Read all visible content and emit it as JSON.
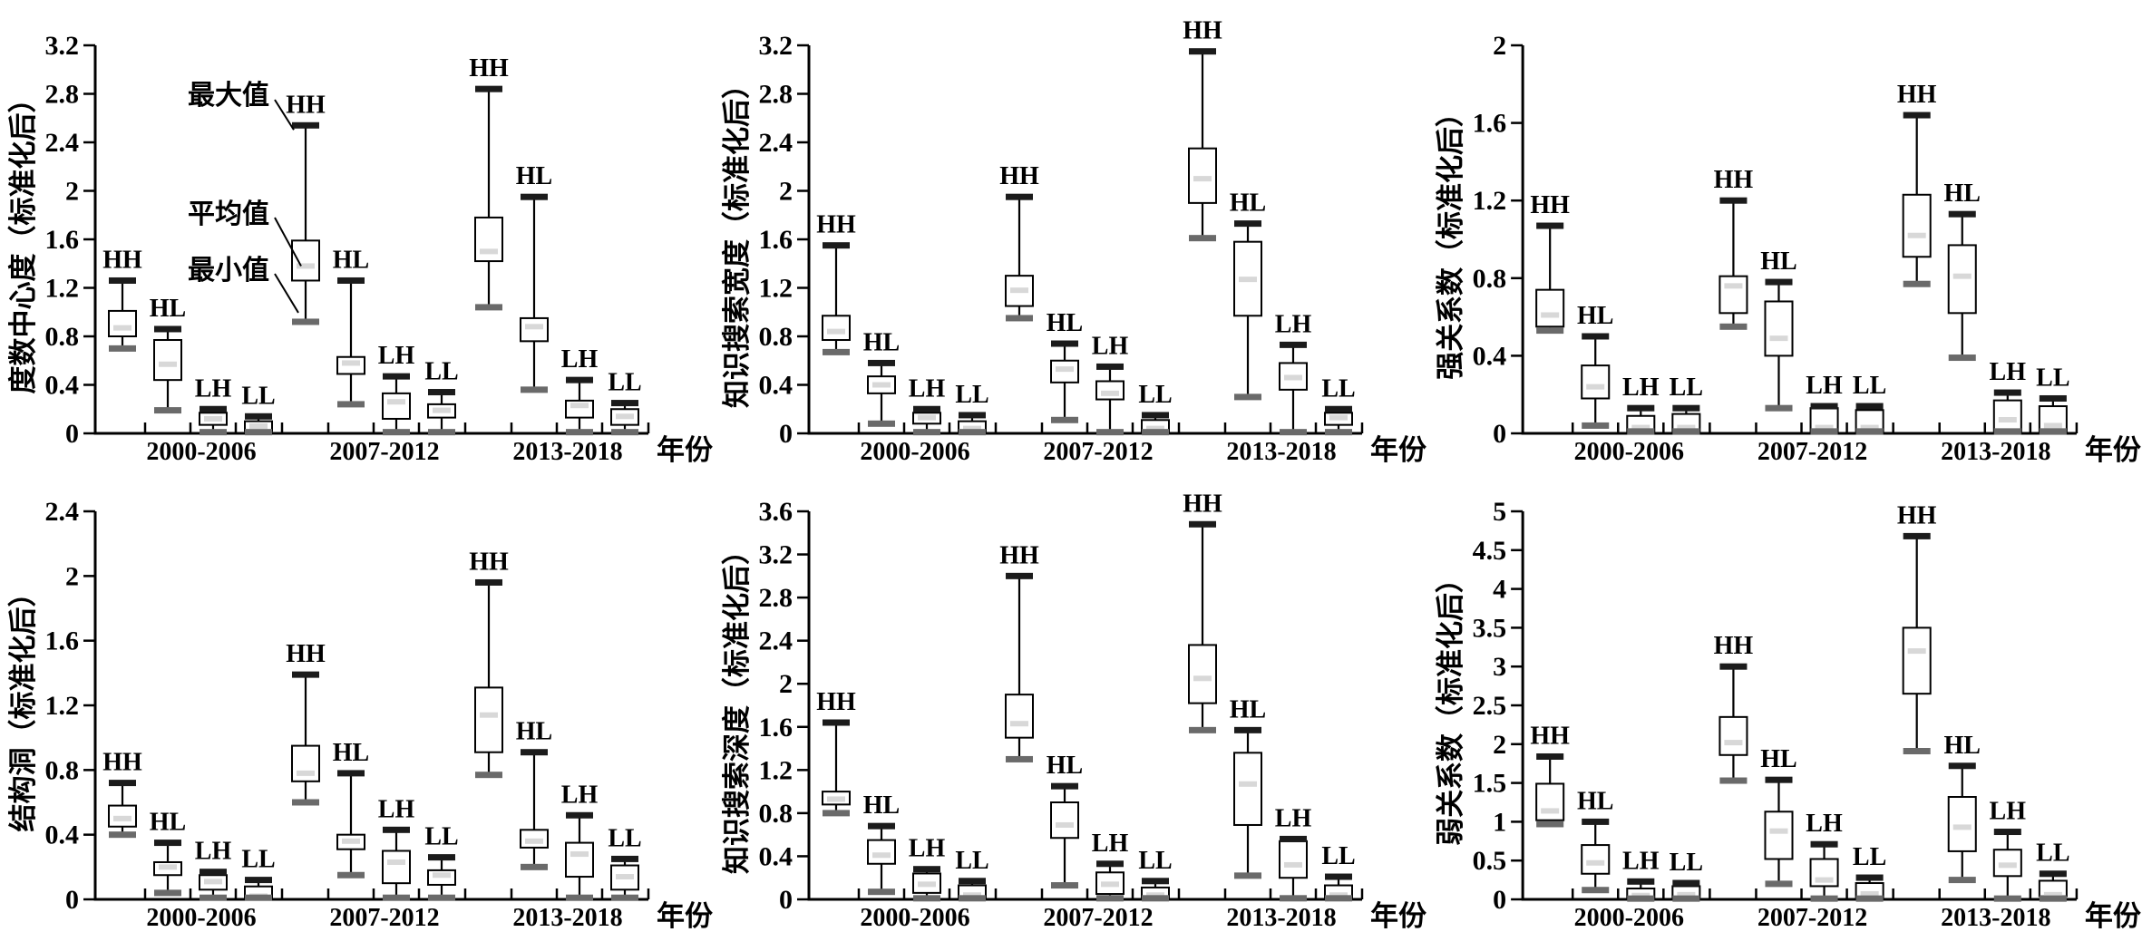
{
  "figure": {
    "xlabel": "年份",
    "period_labels": [
      "2000-2006",
      "2007-2012",
      "2013-2018"
    ],
    "group_labels": [
      "HH",
      "HL",
      "LH",
      "LL"
    ],
    "annotation_labels": {
      "max": "最大值",
      "mean": "平均值",
      "min": "最小值"
    },
    "colors": {
      "max_cap": "#1b1b1b",
      "min_cap": "#6a6a6a",
      "mean_bar": "#d8d8d8",
      "box_fill": "#ffffff",
      "line": "#000000"
    }
  },
  "chart_data": [
    {
      "type": "box",
      "ylabel": "度数中心度（标准化后）",
      "xlabel": "年份",
      "ylim": [
        0,
        3.2
      ],
      "ytick_step": 0.4,
      "grid": false,
      "annotations": {
        "max_label": "最大值",
        "mean_label": "平均值",
        "min_label": "最小值",
        "target_period": 1,
        "target_box": 0
      },
      "periods": [
        {
          "label": "2000-2006",
          "boxes": [
            {
              "group": "HH",
              "min": 0.7,
              "q1": 0.8,
              "mean": 0.87,
              "q3": 1.01,
              "max": 1.26
            },
            {
              "group": "HL",
              "min": 0.19,
              "q1": 0.44,
              "mean": 0.57,
              "q3": 0.77,
              "max": 0.86
            },
            {
              "group": "LH",
              "min": 0.01,
              "q1": 0.07,
              "mean": 0.12,
              "q3": 0.17,
              "max": 0.2
            },
            {
              "group": "LL",
              "min": 0.01,
              "q1": 0.02,
              "mean": 0.06,
              "q3": 0.1,
              "max": 0.14
            }
          ]
        },
        {
          "label": "2007-2012",
          "boxes": [
            {
              "group": "HH",
              "min": 0.92,
              "q1": 1.26,
              "mean": 1.38,
              "q3": 1.59,
              "max": 2.54
            },
            {
              "group": "HL",
              "min": 0.24,
              "q1": 0.49,
              "mean": 0.58,
              "q3": 0.63,
              "max": 1.26
            },
            {
              "group": "LH",
              "min": 0.01,
              "q1": 0.12,
              "mean": 0.26,
              "q3": 0.33,
              "max": 0.47
            },
            {
              "group": "LL",
              "min": 0.01,
              "q1": 0.13,
              "mean": 0.19,
              "q3": 0.24,
              "max": 0.34
            }
          ]
        },
        {
          "label": "2013-2018",
          "boxes": [
            {
              "group": "HH",
              "min": 1.04,
              "q1": 1.42,
              "mean": 1.5,
              "q3": 1.78,
              "max": 2.84
            },
            {
              "group": "HL",
              "min": 0.36,
              "q1": 0.76,
              "mean": 0.88,
              "q3": 0.95,
              "max": 1.95
            },
            {
              "group": "LH",
              "min": 0.01,
              "q1": 0.13,
              "mean": 0.23,
              "q3": 0.27,
              "max": 0.44
            },
            {
              "group": "LL",
              "min": 0.01,
              "q1": 0.07,
              "mean": 0.14,
              "q3": 0.2,
              "max": 0.25
            }
          ]
        }
      ]
    },
    {
      "type": "box",
      "ylabel": "知识搜索宽度（标准化后）",
      "xlabel": "年份",
      "ylim": [
        0,
        3.2
      ],
      "ytick_step": 0.4,
      "grid": false,
      "periods": [
        {
          "label": "2000-2006",
          "boxes": [
            {
              "group": "HH",
              "min": 0.67,
              "q1": 0.77,
              "mean": 0.84,
              "q3": 0.97,
              "max": 1.55
            },
            {
              "group": "HL",
              "min": 0.08,
              "q1": 0.33,
              "mean": 0.4,
              "q3": 0.47,
              "max": 0.58
            },
            {
              "group": "LH",
              "min": 0.01,
              "q1": 0.08,
              "mean": 0.13,
              "q3": 0.17,
              "max": 0.2
            },
            {
              "group": "LL",
              "min": 0.01,
              "q1": 0.01,
              "mean": 0.04,
              "q3": 0.1,
              "max": 0.15
            }
          ]
        },
        {
          "label": "2007-2012",
          "boxes": [
            {
              "group": "HH",
              "min": 0.95,
              "q1": 1.05,
              "mean": 1.18,
              "q3": 1.3,
              "max": 1.95
            },
            {
              "group": "HL",
              "min": 0.11,
              "q1": 0.42,
              "mean": 0.53,
              "q3": 0.6,
              "max": 0.74
            },
            {
              "group": "LH",
              "min": 0.01,
              "q1": 0.28,
              "mean": 0.33,
              "q3": 0.43,
              "max": 0.55
            },
            {
              "group": "LL",
              "min": 0.01,
              "q1": 0.01,
              "mean": 0.04,
              "q3": 0.11,
              "max": 0.15
            }
          ]
        },
        {
          "label": "2013-2018",
          "boxes": [
            {
              "group": "HH",
              "min": 1.61,
              "q1": 1.9,
              "mean": 2.1,
              "q3": 2.35,
              "max": 3.15
            },
            {
              "group": "HL",
              "min": 0.3,
              "q1": 0.97,
              "mean": 1.27,
              "q3": 1.58,
              "max": 1.73
            },
            {
              "group": "LH",
              "min": 0.01,
              "q1": 0.36,
              "mean": 0.46,
              "q3": 0.58,
              "max": 0.73
            },
            {
              "group": "LL",
              "min": 0.01,
              "q1": 0.07,
              "mean": 0.13,
              "q3": 0.17,
              "max": 0.2
            }
          ]
        }
      ]
    },
    {
      "type": "box",
      "ylabel": "强关系数（标准化后）",
      "xlabel": "年份",
      "ylim": [
        0,
        2.0
      ],
      "ytick_step": 0.4,
      "grid": false,
      "periods": [
        {
          "label": "2000-2006",
          "boxes": [
            {
              "group": "HH",
              "min": 0.53,
              "q1": 0.55,
              "mean": 0.61,
              "q3": 0.74,
              "max": 1.07
            },
            {
              "group": "HL",
              "min": 0.04,
              "q1": 0.18,
              "mean": 0.24,
              "q3": 0.35,
              "max": 0.5
            },
            {
              "group": "LH",
              "min": 0.01,
              "q1": 0.01,
              "mean": 0.03,
              "q3": 0.09,
              "max": 0.13
            },
            {
              "group": "LL",
              "min": 0.01,
              "q1": 0.01,
              "mean": 0.03,
              "q3": 0.1,
              "max": 0.13
            }
          ]
        },
        {
          "label": "2007-2012",
          "boxes": [
            {
              "group": "HH",
              "min": 0.55,
              "q1": 0.62,
              "mean": 0.76,
              "q3": 0.81,
              "max": 1.2
            },
            {
              "group": "HL",
              "min": 0.13,
              "q1": 0.4,
              "mean": 0.49,
              "q3": 0.68,
              "max": 0.78
            },
            {
              "group": "LH",
              "min": 0.01,
              "q1": 0.01,
              "mean": 0.03,
              "q3": 0.13,
              "max": 0.14
            },
            {
              "group": "LL",
              "min": 0.01,
              "q1": 0.01,
              "mean": 0.03,
              "q3": 0.12,
              "max": 0.14
            }
          ]
        },
        {
          "label": "2013-2018",
          "boxes": [
            {
              "group": "HH",
              "min": 0.77,
              "q1": 0.91,
              "mean": 1.02,
              "q3": 1.23,
              "max": 1.64
            },
            {
              "group": "HL",
              "min": 0.39,
              "q1": 0.62,
              "mean": 0.81,
              "q3": 0.97,
              "max": 1.13
            },
            {
              "group": "LH",
              "min": 0.01,
              "q1": 0.01,
              "mean": 0.07,
              "q3": 0.17,
              "max": 0.21
            },
            {
              "group": "LL",
              "min": 0.01,
              "q1": 0.01,
              "mean": 0.04,
              "q3": 0.14,
              "max": 0.18
            }
          ]
        }
      ]
    },
    {
      "type": "box",
      "ylabel": "结构洞（标准化后）",
      "xlabel": "年份",
      "ylim": [
        0,
        2.4
      ],
      "ytick_step": 0.4,
      "grid": false,
      "periods": [
        {
          "label": "2000-2006",
          "boxes": [
            {
              "group": "HH",
              "min": 0.4,
              "q1": 0.45,
              "mean": 0.5,
              "q3": 0.58,
              "max": 0.72
            },
            {
              "group": "HL",
              "min": 0.04,
              "q1": 0.15,
              "mean": 0.2,
              "q3": 0.23,
              "max": 0.35
            },
            {
              "group": "LH",
              "min": 0.01,
              "q1": 0.06,
              "mean": 0.11,
              "q3": 0.15,
              "max": 0.17
            },
            {
              "group": "LL",
              "min": 0.01,
              "q1": 0.01,
              "mean": 0.02,
              "q3": 0.08,
              "max": 0.12
            }
          ]
        },
        {
          "label": "2007-2012",
          "boxes": [
            {
              "group": "HH",
              "min": 0.6,
              "q1": 0.73,
              "mean": 0.78,
              "q3": 0.95,
              "max": 1.39
            },
            {
              "group": "HL",
              "min": 0.15,
              "q1": 0.31,
              "mean": 0.36,
              "q3": 0.4,
              "max": 0.78
            },
            {
              "group": "LH",
              "min": 0.01,
              "q1": 0.1,
              "mean": 0.23,
              "q3": 0.3,
              "max": 0.43
            },
            {
              "group": "LL",
              "min": 0.01,
              "q1": 0.09,
              "mean": 0.15,
              "q3": 0.18,
              "max": 0.26
            }
          ]
        },
        {
          "label": "2013-2018",
          "boxes": [
            {
              "group": "HH",
              "min": 0.77,
              "q1": 0.91,
              "mean": 1.14,
              "q3": 1.31,
              "max": 1.96
            },
            {
              "group": "HL",
              "min": 0.2,
              "q1": 0.32,
              "mean": 0.36,
              "q3": 0.43,
              "max": 0.91
            },
            {
              "group": "LH",
              "min": 0.01,
              "q1": 0.14,
              "mean": 0.28,
              "q3": 0.35,
              "max": 0.52
            },
            {
              "group": "LL",
              "min": 0.01,
              "q1": 0.06,
              "mean": 0.14,
              "q3": 0.21,
              "max": 0.25
            }
          ]
        }
      ]
    },
    {
      "type": "box",
      "ylabel": "知识搜索深度（标准化后）",
      "xlabel": "年份",
      "ylim": [
        0,
        3.6
      ],
      "ytick_step": 0.4,
      "grid": false,
      "periods": [
        {
          "label": "2000-2006",
          "boxes": [
            {
              "group": "HH",
              "min": 0.8,
              "q1": 0.88,
              "mean": 0.93,
              "q3": 1.0,
              "max": 1.64
            },
            {
              "group": "HL",
              "min": 0.07,
              "q1": 0.33,
              "mean": 0.41,
              "q3": 0.55,
              "max": 0.68
            },
            {
              "group": "LH",
              "min": 0.01,
              "q1": 0.06,
              "mean": 0.14,
              "q3": 0.24,
              "max": 0.28
            },
            {
              "group": "LL",
              "min": 0.01,
              "q1": 0.02,
              "mean": 0.04,
              "q3": 0.13,
              "max": 0.17
            }
          ]
        },
        {
          "label": "2007-2012",
          "boxes": [
            {
              "group": "HH",
              "min": 1.3,
              "q1": 1.5,
              "mean": 1.63,
              "q3": 1.9,
              "max": 3.0
            },
            {
              "group": "HL",
              "min": 0.13,
              "q1": 0.57,
              "mean": 0.69,
              "q3": 0.9,
              "max": 1.05
            },
            {
              "group": "LH",
              "min": 0.01,
              "q1": 0.05,
              "mean": 0.14,
              "q3": 0.25,
              "max": 0.33
            },
            {
              "group": "LL",
              "min": 0.01,
              "q1": 0.02,
              "mean": 0.04,
              "q3": 0.11,
              "max": 0.17
            }
          ]
        },
        {
          "label": "2013-2018",
          "boxes": [
            {
              "group": "HH",
              "min": 1.57,
              "q1": 1.82,
              "mean": 2.05,
              "q3": 2.36,
              "max": 3.48
            },
            {
              "group": "HL",
              "min": 0.22,
              "q1": 0.69,
              "mean": 1.07,
              "q3": 1.36,
              "max": 1.57
            },
            {
              "group": "LH",
              "min": 0.01,
              "q1": 0.2,
              "mean": 0.32,
              "q3": 0.54,
              "max": 0.56
            },
            {
              "group": "LL",
              "min": 0.01,
              "q1": 0.02,
              "mean": 0.04,
              "q3": 0.13,
              "max": 0.21
            }
          ]
        }
      ]
    },
    {
      "type": "box",
      "ylabel": "弱关系数（标准化后）",
      "xlabel": "年份",
      "ylim": [
        0,
        5.0
      ],
      "ytick_step": 0.5,
      "grid": false,
      "periods": [
        {
          "label": "2000-2006",
          "boxes": [
            {
              "group": "HH",
              "min": 0.97,
              "q1": 1.02,
              "mean": 1.14,
              "q3": 1.49,
              "max": 1.84
            },
            {
              "group": "HL",
              "min": 0.12,
              "q1": 0.33,
              "mean": 0.47,
              "q3": 0.7,
              "max": 1.0
            },
            {
              "group": "LH",
              "min": 0.01,
              "q1": 0.01,
              "mean": 0.05,
              "q3": 0.14,
              "max": 0.23
            },
            {
              "group": "LL",
              "min": 0.01,
              "q1": 0.03,
              "mean": 0.06,
              "q3": 0.17,
              "max": 0.21
            }
          ]
        },
        {
          "label": "2007-2012",
          "boxes": [
            {
              "group": "HH",
              "min": 1.53,
              "q1": 1.86,
              "mean": 2.02,
              "q3": 2.35,
              "max": 3.0
            },
            {
              "group": "HL",
              "min": 0.2,
              "q1": 0.52,
              "mean": 0.88,
              "q3": 1.13,
              "max": 1.54
            },
            {
              "group": "LH",
              "min": 0.01,
              "q1": 0.17,
              "mean": 0.25,
              "q3": 0.52,
              "max": 0.71
            },
            {
              "group": "LL",
              "min": 0.01,
              "q1": 0.03,
              "mean": 0.07,
              "q3": 0.21,
              "max": 0.28
            }
          ]
        },
        {
          "label": "2013-2018",
          "boxes": [
            {
              "group": "HH",
              "min": 1.91,
              "q1": 2.65,
              "mean": 3.2,
              "q3": 3.5,
              "max": 4.68
            },
            {
              "group": "HL",
              "min": 0.25,
              "q1": 0.62,
              "mean": 0.93,
              "q3": 1.32,
              "max": 1.72
            },
            {
              "group": "LH",
              "min": 0.01,
              "q1": 0.3,
              "mean": 0.44,
              "q3": 0.64,
              "max": 0.87
            },
            {
              "group": "LL",
              "min": 0.01,
              "q1": 0.04,
              "mean": 0.06,
              "q3": 0.24,
              "max": 0.33
            }
          ]
        }
      ]
    }
  ]
}
